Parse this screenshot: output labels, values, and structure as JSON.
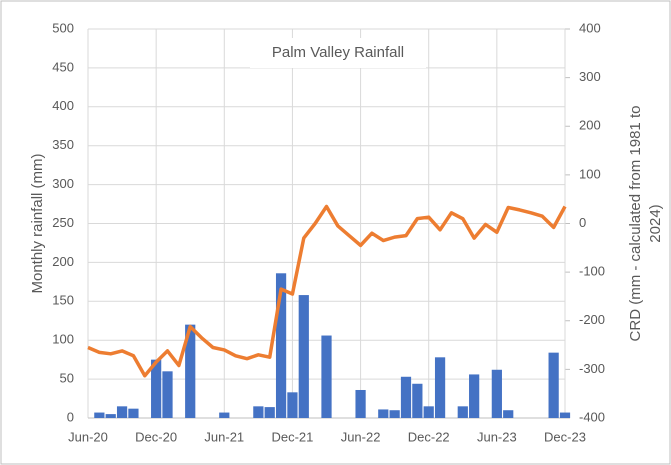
{
  "chart_data": {
    "type": "bar",
    "title": "Palm Valley Rainfall",
    "ylabel": "Monthly rainfall (mm)",
    "y2label": [
      "CRD (mm - calculated from 1981 to",
      "2024)"
    ],
    "categories": [
      "Jun-20",
      null,
      null,
      null,
      null,
      null,
      "Dec-20",
      null,
      null,
      null,
      null,
      null,
      "Jun-21",
      null,
      null,
      null,
      null,
      null,
      "Dec-21",
      null,
      null,
      null,
      null,
      null,
      "Jun-22",
      null,
      null,
      null,
      null,
      null,
      "Dec-22",
      null,
      null,
      null,
      null,
      null,
      "Jun-23",
      null,
      null,
      null,
      null,
      null,
      "Dec-23"
    ],
    "series": [
      {
        "name": "Monthly rainfall",
        "type": "bar",
        "color": "#4472c4",
        "values": [
          0,
          7,
          5,
          15,
          12,
          0,
          75,
          60,
          0,
          120,
          0,
          0,
          7,
          0,
          0,
          15,
          14,
          186,
          33,
          158,
          0,
          106,
          0,
          0,
          36,
          0,
          11,
          10,
          53,
          44,
          15,
          78,
          0,
          15,
          56,
          0,
          62,
          10,
          0,
          0,
          0,
          84,
          7
        ]
      },
      {
        "name": "CRD",
        "type": "line",
        "axis": "y2",
        "color": "#ed7d31",
        "values": [
          -255,
          -265,
          -268,
          -262,
          -272,
          -313,
          -285,
          -262,
          -292,
          -212,
          -235,
          -255,
          -260,
          -272,
          -278,
          -270,
          -275,
          -135,
          -145,
          -30,
          0,
          35,
          -5,
          -25,
          -45,
          -20,
          -35,
          -28,
          -25,
          10,
          13,
          -13,
          22,
          10,
          -30,
          -2,
          -18,
          33,
          28,
          22,
          15,
          -8,
          35
        ]
      }
    ],
    "ylim": [
      0,
      500
    ],
    "yticks": [
      0,
      50,
      100,
      150,
      200,
      250,
      300,
      350,
      400,
      450,
      500
    ],
    "y2lim": [
      -400,
      400
    ],
    "y2ticks": [
      -400,
      -300,
      -200,
      -100,
      0,
      100,
      200,
      300,
      400
    ],
    "grid": true
  }
}
